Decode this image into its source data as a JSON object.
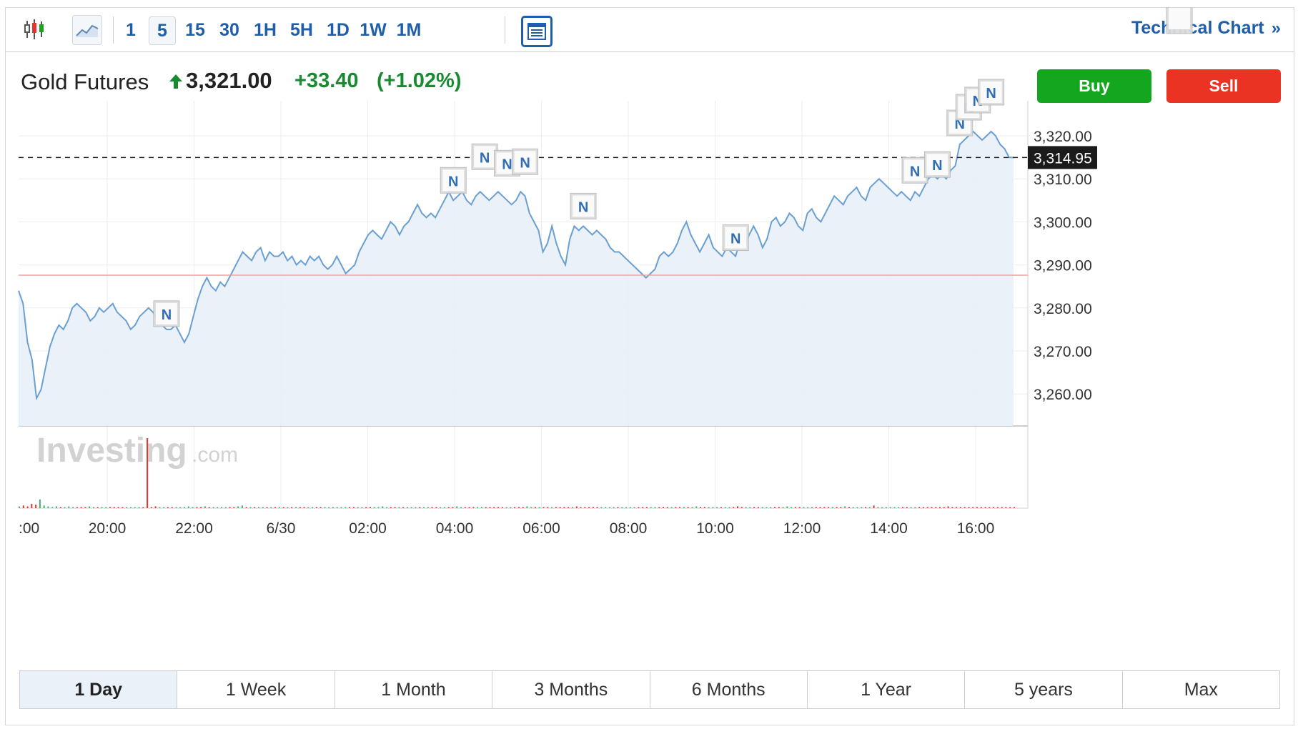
{
  "toolbar": {
    "intervals": [
      "1",
      "5",
      "15",
      "30",
      "1H",
      "5H",
      "1D",
      "1W",
      "1M"
    ],
    "active_interval": "5",
    "technical_chart_label": "Technical Chart",
    "icons": [
      "candlestick-icon",
      "line-chart-icon",
      "news-toggle-icon",
      "double-chevron-right-icon"
    ]
  },
  "instrument": {
    "name": "Gold Futures",
    "price": "3,321.00",
    "change": "+33.40",
    "change_pct": "(+1.02%)",
    "direction": "up"
  },
  "actions": {
    "buy_label": "Buy",
    "sell_label": "Sell"
  },
  "colors": {
    "buy": "#14a61e",
    "sell": "#ea3323",
    "up": "#188a32",
    "accent": "#1f5ea8",
    "line": "#6a9fd1",
    "area": "#e9f0f8"
  },
  "watermark": {
    "brand": "Investing",
    "suffix": ".com"
  },
  "chart_data": {
    "type": "area",
    "x_tick_labels": [
      ":00",
      "20:00",
      "22:00",
      "6/30",
      "02:00",
      "04:00",
      "06:00",
      "08:00",
      "10:00",
      "12:00",
      "14:00",
      "16:00"
    ],
    "y_tick_labels": [
      "3,320.00",
      "3,310.00",
      "3,300.00",
      "3,290.00",
      "3,280.00",
      "3,270.00",
      "3,260.00"
    ],
    "ylim": [
      3252,
      3330
    ],
    "current_price_label": "3,314.95",
    "current_price": 3314.95,
    "previous_close": 3287.6,
    "series": [
      {
        "values": [
          3284,
          3281,
          3272,
          3268,
          3259,
          3261,
          3266,
          3271,
          3274,
          3276,
          3275,
          3277,
          3280,
          3281,
          3280,
          3279,
          3277,
          3278,
          3280,
          3279,
          3280,
          3281,
          3279,
          3278,
          3277,
          3275,
          3276,
          3278,
          3279,
          3280,
          3279,
          3277,
          3276,
          3275,
          3275,
          3276,
          3274,
          3272,
          3274,
          3278,
          3282,
          3285,
          3287,
          3285,
          3284,
          3286,
          3285,
          3287,
          3289,
          3291,
          3293,
          3292,
          3291,
          3293,
          3294,
          3291,
          3293,
          3292,
          3292,
          3293,
          3291,
          3292,
          3290,
          3291,
          3290,
          3292,
          3291,
          3292,
          3290,
          3289,
          3290,
          3292,
          3290,
          3288,
          3289,
          3290,
          3293,
          3295,
          3297,
          3298,
          3297,
          3296,
          3298,
          3300,
          3299,
          3297,
          3299,
          3300,
          3302,
          3304,
          3302,
          3301,
          3302,
          3301,
          3303,
          3305,
          3307,
          3305,
          3306,
          3307,
          3305,
          3304,
          3306,
          3307,
          3306,
          3305,
          3306,
          3307,
          3306,
          3305,
          3304,
          3305,
          3307,
          3306,
          3302,
          3300,
          3298,
          3293,
          3295,
          3299,
          3295,
          3292,
          3290,
          3296,
          3299,
          3298,
          3299,
          3298,
          3297,
          3298,
          3297,
          3296,
          3294,
          3293,
          3293,
          3292,
          3291,
          3290,
          3289,
          3288,
          3287,
          3288,
          3289,
          3292,
          3293,
          3292,
          3293,
          3295,
          3298,
          3300,
          3297,
          3295,
          3293,
          3295,
          3297,
          3294,
          3293,
          3292,
          3294,
          3293,
          3292,
          3296,
          3294,
          3297,
          3299,
          3297,
          3294,
          3296,
          3300,
          3301,
          3299,
          3300,
          3302,
          3301,
          3299,
          3298,
          3302,
          3303,
          3301,
          3300,
          3302,
          3304,
          3306,
          3305,
          3304,
          3306,
          3307,
          3308,
          3306,
          3305,
          3308,
          3309,
          3310,
          3309,
          3308,
          3307,
          3306,
          3307,
          3306,
          3305,
          3307,
          3306,
          3308,
          3310,
          3311,
          3310,
          3311,
          3310,
          3312,
          3313,
          3318,
          3319,
          3320,
          3321,
          3320,
          3319,
          3320,
          3321,
          3320,
          3318,
          3317,
          3315,
          3314.95
        ]
      }
    ],
    "volume_values": [
      2,
      3,
      2,
      5,
      4,
      10,
      3,
      2,
      1,
      2,
      1,
      1,
      2,
      1,
      1,
      1,
      1,
      2,
      1,
      1,
      1,
      1,
      1,
      1,
      1,
      1,
      1,
      1,
      1,
      1,
      1,
      80,
      1,
      2,
      1,
      1,
      1,
      1,
      1,
      1,
      1,
      2,
      1,
      1,
      1,
      2,
      1,
      1,
      1,
      1,
      1,
      1,
      1,
      2,
      3,
      1,
      1,
      1,
      1,
      1,
      1,
      1,
      1,
      1,
      1,
      1,
      1,
      1,
      1,
      1,
      1,
      1,
      1,
      1,
      1,
      1,
      1,
      1,
      1,
      1,
      1,
      1,
      1,
      1,
      1,
      1,
      1,
      1,
      2,
      1,
      1,
      1,
      1,
      1,
      1,
      1,
      1,
      1,
      1,
      1,
      1,
      1,
      1,
      1,
      1,
      1,
      2,
      1,
      1,
      1,
      1,
      1,
      1,
      1,
      1,
      1,
      1,
      1,
      1,
      1,
      1,
      1,
      1,
      2,
      1,
      1,
      1,
      1,
      1,
      1,
      1,
      1,
      1,
      1,
      1,
      2,
      1,
      1,
      1,
      1,
      1,
      1,
      1,
      1,
      1,
      1,
      1,
      1,
      1,
      1,
      1,
      1,
      1,
      1,
      1,
      1,
      1,
      1,
      1,
      1,
      1,
      1,
      1,
      1,
      2,
      1,
      1,
      1,
      1,
      1,
      1,
      1,
      1,
      1,
      2,
      1,
      1,
      1,
      1,
      1,
      1,
      1,
      1,
      1,
      1,
      1,
      2,
      1,
      1,
      1,
      1,
      1,
      1,
      1,
      1,
      1,
      1,
      1,
      1,
      1,
      2,
      1,
      1,
      1,
      1,
      1,
      1,
      3,
      1,
      1,
      1,
      1,
      1,
      1,
      1,
      1,
      1,
      1,
      1,
      1,
      1,
      1,
      1,
      1,
      1,
      2,
      1,
      1,
      1,
      1,
      1,
      1,
      1,
      1,
      1,
      1,
      1,
      1,
      1,
      1,
      1,
      1
    ]
  },
  "ranges": [
    "1 Day",
    "1 Week",
    "1 Month",
    "3 Months",
    "6 Months",
    "1 Year",
    "5 years",
    "Max"
  ],
  "active_range": "1 Day"
}
